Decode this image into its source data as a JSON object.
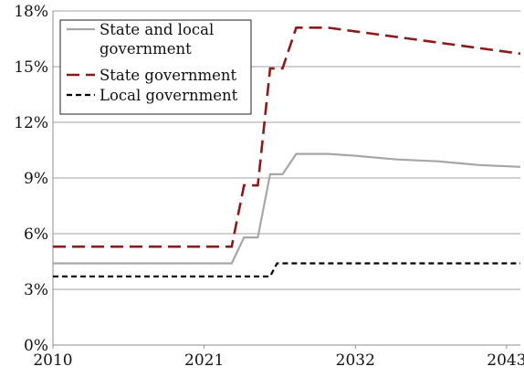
{
  "chart_data": {
    "type": "line",
    "title": "",
    "xlabel": "",
    "ylabel": "",
    "xlim": [
      2010,
      2044
    ],
    "ylim": [
      0,
      18
    ],
    "y_unit": "%",
    "x_ticks": [
      2010,
      2021,
      2032,
      2043
    ],
    "y_ticks": [
      0,
      3,
      6,
      9,
      12,
      15,
      18
    ],
    "y_tick_labels": [
      "0%",
      "3%",
      "6%",
      "9%",
      "12%",
      "15%",
      "18%"
    ],
    "grid": "horizontal",
    "legend_position": "top-left",
    "series": [
      {
        "name": "State and local government",
        "name_lines": [
          "State and local",
          "government"
        ],
        "color": "#a6a6a6",
        "style": "solid",
        "x": [
          2010,
          2023,
          2023.9,
          2024.9,
          2025.8,
          2026.7,
          2027.7,
          2030,
          2032,
          2035,
          2038,
          2041,
          2044
        ],
        "y": [
          4.4,
          4.4,
          5.8,
          5.8,
          9.2,
          9.2,
          10.3,
          10.3,
          10.2,
          10.0,
          9.9,
          9.7,
          9.6
        ]
      },
      {
        "name": "State government",
        "name_lines": [
          "State government"
        ],
        "color": "#8b1a1a",
        "style": "dashed",
        "x": [
          2010,
          2023,
          2023.9,
          2024.9,
          2025.8,
          2026.7,
          2027.7,
          2030,
          2032,
          2035,
          2038,
          2041,
          2044
        ],
        "y": [
          5.3,
          5.3,
          8.6,
          8.6,
          14.9,
          14.9,
          17.1,
          17.1,
          16.9,
          16.6,
          16.3,
          16.0,
          15.7
        ]
      },
      {
        "name": "Local government",
        "name_lines": [
          "Local government"
        ],
        "color": "#000000",
        "style": "dashed-short",
        "x": [
          2010,
          2025.8,
          2026.3,
          2044
        ],
        "y": [
          3.7,
          3.7,
          4.4,
          4.4
        ]
      }
    ]
  }
}
